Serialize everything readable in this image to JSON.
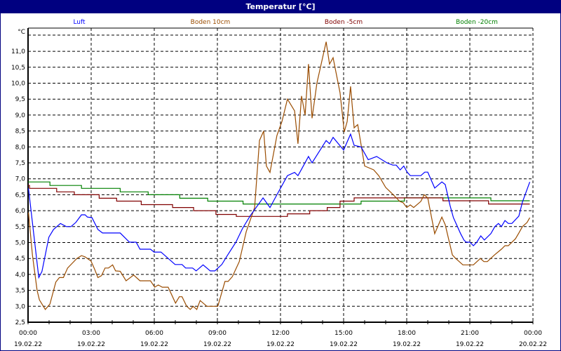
{
  "window": {
    "title": "Temperatur [°C]"
  },
  "chart_data": {
    "type": "line",
    "title": "Temperatur [°C]",
    "ylabel": "°C",
    "xlabel": "",
    "ylim": [
      2.5,
      11.73
    ],
    "xlim_hours": [
      0,
      24
    ],
    "grid": true,
    "legend_placement": "top",
    "y_ticks": [
      2.5,
      3.0,
      3.5,
      4.0,
      4.5,
      5.0,
      5.5,
      6.0,
      6.5,
      7.0,
      7.5,
      8.0,
      8.5,
      9.0,
      9.5,
      10.0,
      10.5,
      11.0
    ],
    "y_tick_labels": [
      "2,5",
      "3,0",
      "3,5",
      "4,0",
      "4,5",
      "5,0",
      "5,5",
      "6,0",
      "6,5",
      "7,0",
      "7,5",
      "8,0",
      "8,5",
      "9,0",
      "9,5",
      "10,0",
      "10,5",
      "11,0"
    ],
    "x_ticks": [
      {
        "h": 0,
        "time": "00:00",
        "date": "19.02.22"
      },
      {
        "h": 3,
        "time": "03:00",
        "date": "19.02.22"
      },
      {
        "h": 6,
        "time": "06:00",
        "date": "19.02.22"
      },
      {
        "h": 9,
        "time": "09:00",
        "date": "19.02.22"
      },
      {
        "h": 12,
        "time": "12:00",
        "date": "19.02.22"
      },
      {
        "h": 15,
        "time": "15:00",
        "date": "19.02.22"
      },
      {
        "h": 18,
        "time": "18:00",
        "date": "19.02.22"
      },
      {
        "h": 21,
        "time": "21:00",
        "date": "19.02.22"
      },
      {
        "h": 24,
        "time": "00:00",
        "date": "20.02.22"
      }
    ],
    "series": [
      {
        "name": "Luft",
        "color": "#0000ff",
        "step": false,
        "end": 23.85,
        "points": [
          [
            0.02,
            6.7
          ],
          [
            0.51,
            3.9
          ],
          [
            0.66,
            4.09
          ],
          [
            0.99,
            5.17
          ],
          [
            1.21,
            5.41
          ],
          [
            1.54,
            5.6
          ],
          [
            1.82,
            5.5
          ],
          [
            2.04,
            5.5
          ],
          [
            2.27,
            5.63
          ],
          [
            2.54,
            5.87
          ],
          [
            2.71,
            5.87
          ],
          [
            2.82,
            5.8
          ],
          [
            3.04,
            5.78
          ],
          [
            3.32,
            5.41
          ],
          [
            3.54,
            5.3
          ],
          [
            4.38,
            5.3
          ],
          [
            4.82,
            5.01
          ],
          [
            5.14,
            5.01
          ],
          [
            5.32,
            4.79
          ],
          [
            5.82,
            4.79
          ],
          [
            5.99,
            4.7
          ],
          [
            6.32,
            4.7
          ],
          [
            6.99,
            4.31
          ],
          [
            7.32,
            4.31
          ],
          [
            7.49,
            4.2
          ],
          [
            7.82,
            4.2
          ],
          [
            7.99,
            4.11
          ],
          [
            8.32,
            4.3
          ],
          [
            8.66,
            4.11
          ],
          [
            8.88,
            4.11
          ],
          [
            9.21,
            4.31
          ],
          [
            9.49,
            4.61
          ],
          [
            9.88,
            5.01
          ],
          [
            10.2,
            5.45
          ],
          [
            10.57,
            5.85
          ],
          [
            11.17,
            6.4
          ],
          [
            11.5,
            6.1
          ],
          [
            11.83,
            6.5
          ],
          [
            12.33,
            7.1
          ],
          [
            12.67,
            7.2
          ],
          [
            12.83,
            7.1
          ],
          [
            13.0,
            7.3
          ],
          [
            13.33,
            7.7
          ],
          [
            13.5,
            7.5
          ],
          [
            14.17,
            8.2
          ],
          [
            14.33,
            8.1
          ],
          [
            14.5,
            8.3
          ],
          [
            15.0,
            7.9
          ],
          [
            15.33,
            8.4
          ],
          [
            15.5,
            8.05
          ],
          [
            15.83,
            8.0
          ],
          [
            16.17,
            7.6
          ],
          [
            16.57,
            7.7
          ],
          [
            17.06,
            7.5
          ],
          [
            17.34,
            7.43
          ],
          [
            17.5,
            7.43
          ],
          [
            17.69,
            7.28
          ],
          [
            17.86,
            7.4
          ],
          [
            18.02,
            7.21
          ],
          [
            18.17,
            7.1
          ],
          [
            18.67,
            7.1
          ],
          [
            18.86,
            7.21
          ],
          [
            19.0,
            7.21
          ],
          [
            19.33,
            6.71
          ],
          [
            19.67,
            6.9
          ],
          [
            19.83,
            6.82
          ],
          [
            20.06,
            6.16
          ],
          [
            20.22,
            5.78
          ],
          [
            20.56,
            5.28
          ],
          [
            20.72,
            5.08
          ],
          [
            20.83,
            5.01
          ],
          [
            21.0,
            5.01
          ],
          [
            21.17,
            4.9
          ],
          [
            21.33,
            5.01
          ],
          [
            21.52,
            5.21
          ],
          [
            21.69,
            5.08
          ],
          [
            22.0,
            5.28
          ],
          [
            22.19,
            5.5
          ],
          [
            22.36,
            5.6
          ],
          [
            22.5,
            5.5
          ],
          [
            22.67,
            5.69
          ],
          [
            22.83,
            5.6
          ],
          [
            23.0,
            5.6
          ],
          [
            23.33,
            5.83
          ],
          [
            23.5,
            6.27
          ],
          [
            23.85,
            6.9
          ]
        ]
      },
      {
        "name": "Boden 10cm",
        "color": "#9a4c00",
        "step": false,
        "end": 23.85,
        "points": [
          [
            0.02,
            5.94
          ],
          [
            0.21,
            4.6
          ],
          [
            0.43,
            3.5
          ],
          [
            0.54,
            3.2
          ],
          [
            0.82,
            2.9
          ],
          [
            1.04,
            3.07
          ],
          [
            1.32,
            3.76
          ],
          [
            1.49,
            3.9
          ],
          [
            1.68,
            3.9
          ],
          [
            1.88,
            4.2
          ],
          [
            2.1,
            4.35
          ],
          [
            2.32,
            4.5
          ],
          [
            2.54,
            4.59
          ],
          [
            2.71,
            4.55
          ],
          [
            2.99,
            4.42
          ],
          [
            3.16,
            4.17
          ],
          [
            3.32,
            3.9
          ],
          [
            3.49,
            3.96
          ],
          [
            3.66,
            4.2
          ],
          [
            3.82,
            4.2
          ],
          [
            4.02,
            4.3
          ],
          [
            4.16,
            4.11
          ],
          [
            4.38,
            4.1
          ],
          [
            4.66,
            3.8
          ],
          [
            5.02,
            3.98
          ],
          [
            5.32,
            3.8
          ],
          [
            5.82,
            3.8
          ],
          [
            6.02,
            3.6
          ],
          [
            6.19,
            3.67
          ],
          [
            6.38,
            3.6
          ],
          [
            6.66,
            3.6
          ],
          [
            7.01,
            3.1
          ],
          [
            7.19,
            3.3
          ],
          [
            7.32,
            3.3
          ],
          [
            7.54,
            3.0
          ],
          [
            7.71,
            2.9
          ],
          [
            7.85,
            3.0
          ],
          [
            8.02,
            2.9
          ],
          [
            8.18,
            3.18
          ],
          [
            8.5,
            3.0
          ],
          [
            9.02,
            3.0
          ],
          [
            9.36,
            3.78
          ],
          [
            9.51,
            3.78
          ],
          [
            9.71,
            3.93
          ],
          [
            10.04,
            4.4
          ],
          [
            10.24,
            4.97
          ],
          [
            10.37,
            5.34
          ],
          [
            10.77,
            6.1
          ],
          [
            11.0,
            8.2
          ],
          [
            11.2,
            8.5
          ],
          [
            11.33,
            7.4
          ],
          [
            11.5,
            7.2
          ],
          [
            11.83,
            8.36
          ],
          [
            12.07,
            8.8
          ],
          [
            12.33,
            9.5
          ],
          [
            12.67,
            9.13
          ],
          [
            12.83,
            8.1
          ],
          [
            13.0,
            9.6
          ],
          [
            13.17,
            9.0
          ],
          [
            13.33,
            10.6
          ],
          [
            13.5,
            8.9
          ],
          [
            13.73,
            10.0
          ],
          [
            14.17,
            11.3
          ],
          [
            14.33,
            10.6
          ],
          [
            14.5,
            10.8
          ],
          [
            14.83,
            9.7
          ],
          [
            15.03,
            8.47
          ],
          [
            15.17,
            8.8
          ],
          [
            15.33,
            9.9
          ],
          [
            15.5,
            8.6
          ],
          [
            15.67,
            8.7
          ],
          [
            16.0,
            7.4
          ],
          [
            16.43,
            7.28
          ],
          [
            16.67,
            7.1
          ],
          [
            17.0,
            6.73
          ],
          [
            17.28,
            6.55
          ],
          [
            17.67,
            6.29
          ],
          [
            17.83,
            6.25
          ],
          [
            18.0,
            6.1
          ],
          [
            18.17,
            6.18
          ],
          [
            18.33,
            6.1
          ],
          [
            18.67,
            6.29
          ],
          [
            18.83,
            6.5
          ],
          [
            19.0,
            6.4
          ],
          [
            19.33,
            5.28
          ],
          [
            19.67,
            5.8
          ],
          [
            19.83,
            5.56
          ],
          [
            20.17,
            4.61
          ],
          [
            20.33,
            4.5
          ],
          [
            20.67,
            4.3
          ],
          [
            21.17,
            4.3
          ],
          [
            21.5,
            4.5
          ],
          [
            21.67,
            4.4
          ],
          [
            21.83,
            4.4
          ],
          [
            22.17,
            4.61
          ],
          [
            22.5,
            4.79
          ],
          [
            22.67,
            4.9
          ],
          [
            22.83,
            4.9
          ],
          [
            23.17,
            5.12
          ],
          [
            23.33,
            5.3
          ],
          [
            23.5,
            5.5
          ],
          [
            23.72,
            5.63
          ],
          [
            23.85,
            5.78
          ]
        ]
      },
      {
        "name": "Boden -5cm",
        "color": "#800000",
        "step": true,
        "end": 23.85,
        "points": [
          [
            0,
            6.79
          ],
          [
            0.07,
            6.7
          ],
          [
            1.36,
            6.59
          ],
          [
            2.2,
            6.5
          ],
          [
            3.38,
            6.39
          ],
          [
            4.21,
            6.3
          ],
          [
            5.38,
            6.19
          ],
          [
            6.87,
            6.1
          ],
          [
            7.87,
            6.0
          ],
          [
            8.93,
            5.88
          ],
          [
            9.9,
            5.82
          ],
          [
            12.33,
            5.9
          ],
          [
            13.39,
            6.0
          ],
          [
            14.22,
            6.1
          ],
          [
            14.83,
            6.3
          ],
          [
            15.5,
            6.4
          ],
          [
            19.72,
            6.31
          ],
          [
            21.89,
            6.21
          ]
        ]
      },
      {
        "name": "Boden -20cm",
        "color": "#008000",
        "step": true,
        "end": 23.85,
        "points": [
          [
            0,
            6.9
          ],
          [
            1.04,
            6.79
          ],
          [
            2.54,
            6.7
          ],
          [
            4.38,
            6.59
          ],
          [
            5.71,
            6.5
          ],
          [
            7.21,
            6.39
          ],
          [
            8.54,
            6.3
          ],
          [
            10.22,
            6.21
          ],
          [
            15.83,
            6.3
          ],
          [
            17.89,
            6.4
          ],
          [
            22.0,
            6.31
          ]
        ]
      }
    ]
  }
}
